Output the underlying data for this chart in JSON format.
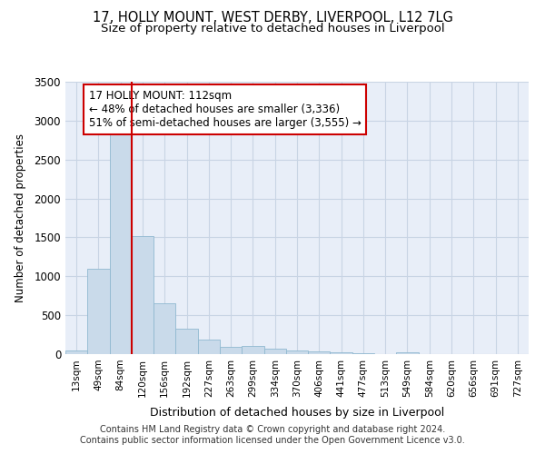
{
  "title_line1": "17, HOLLY MOUNT, WEST DERBY, LIVERPOOL, L12 7LG",
  "title_line2": "Size of property relative to detached houses in Liverpool",
  "xlabel": "Distribution of detached houses by size in Liverpool",
  "ylabel": "Number of detached properties",
  "bin_labels": [
    "13sqm",
    "49sqm",
    "84sqm",
    "120sqm",
    "156sqm",
    "192sqm",
    "227sqm",
    "263sqm",
    "299sqm",
    "334sqm",
    "370sqm",
    "406sqm",
    "441sqm",
    "477sqm",
    "513sqm",
    "549sqm",
    "584sqm",
    "620sqm",
    "656sqm",
    "691sqm",
    "727sqm"
  ],
  "bar_heights": [
    50,
    1100,
    2950,
    1520,
    650,
    330,
    190,
    95,
    100,
    70,
    50,
    40,
    18,
    8,
    4,
    25,
    4,
    1,
    0,
    0,
    0
  ],
  "bar_color": "#c9daea",
  "bar_edge_color": "#90b8d0",
  "grid_color": "#c8d4e4",
  "background_color": "#e8eef8",
  "red_line_index": 3,
  "annotation_text": "17 HOLLY MOUNT: 112sqm\n← 48% of detached houses are smaller (3,336)\n51% of semi-detached houses are larger (3,555) →",
  "annotation_box_color": "#ffffff",
  "annotation_box_edge": "#cc0000",
  "red_line_color": "#cc0000",
  "ylim": [
    0,
    3500
  ],
  "yticks": [
    0,
    500,
    1000,
    1500,
    2000,
    2500,
    3000,
    3500
  ],
  "footnote": "Contains HM Land Registry data © Crown copyright and database right 2024.\nContains public sector information licensed under the Open Government Licence v3.0.",
  "title_fontsize": 10.5,
  "subtitle_fontsize": 9.5,
  "footnote_fontsize": 7
}
